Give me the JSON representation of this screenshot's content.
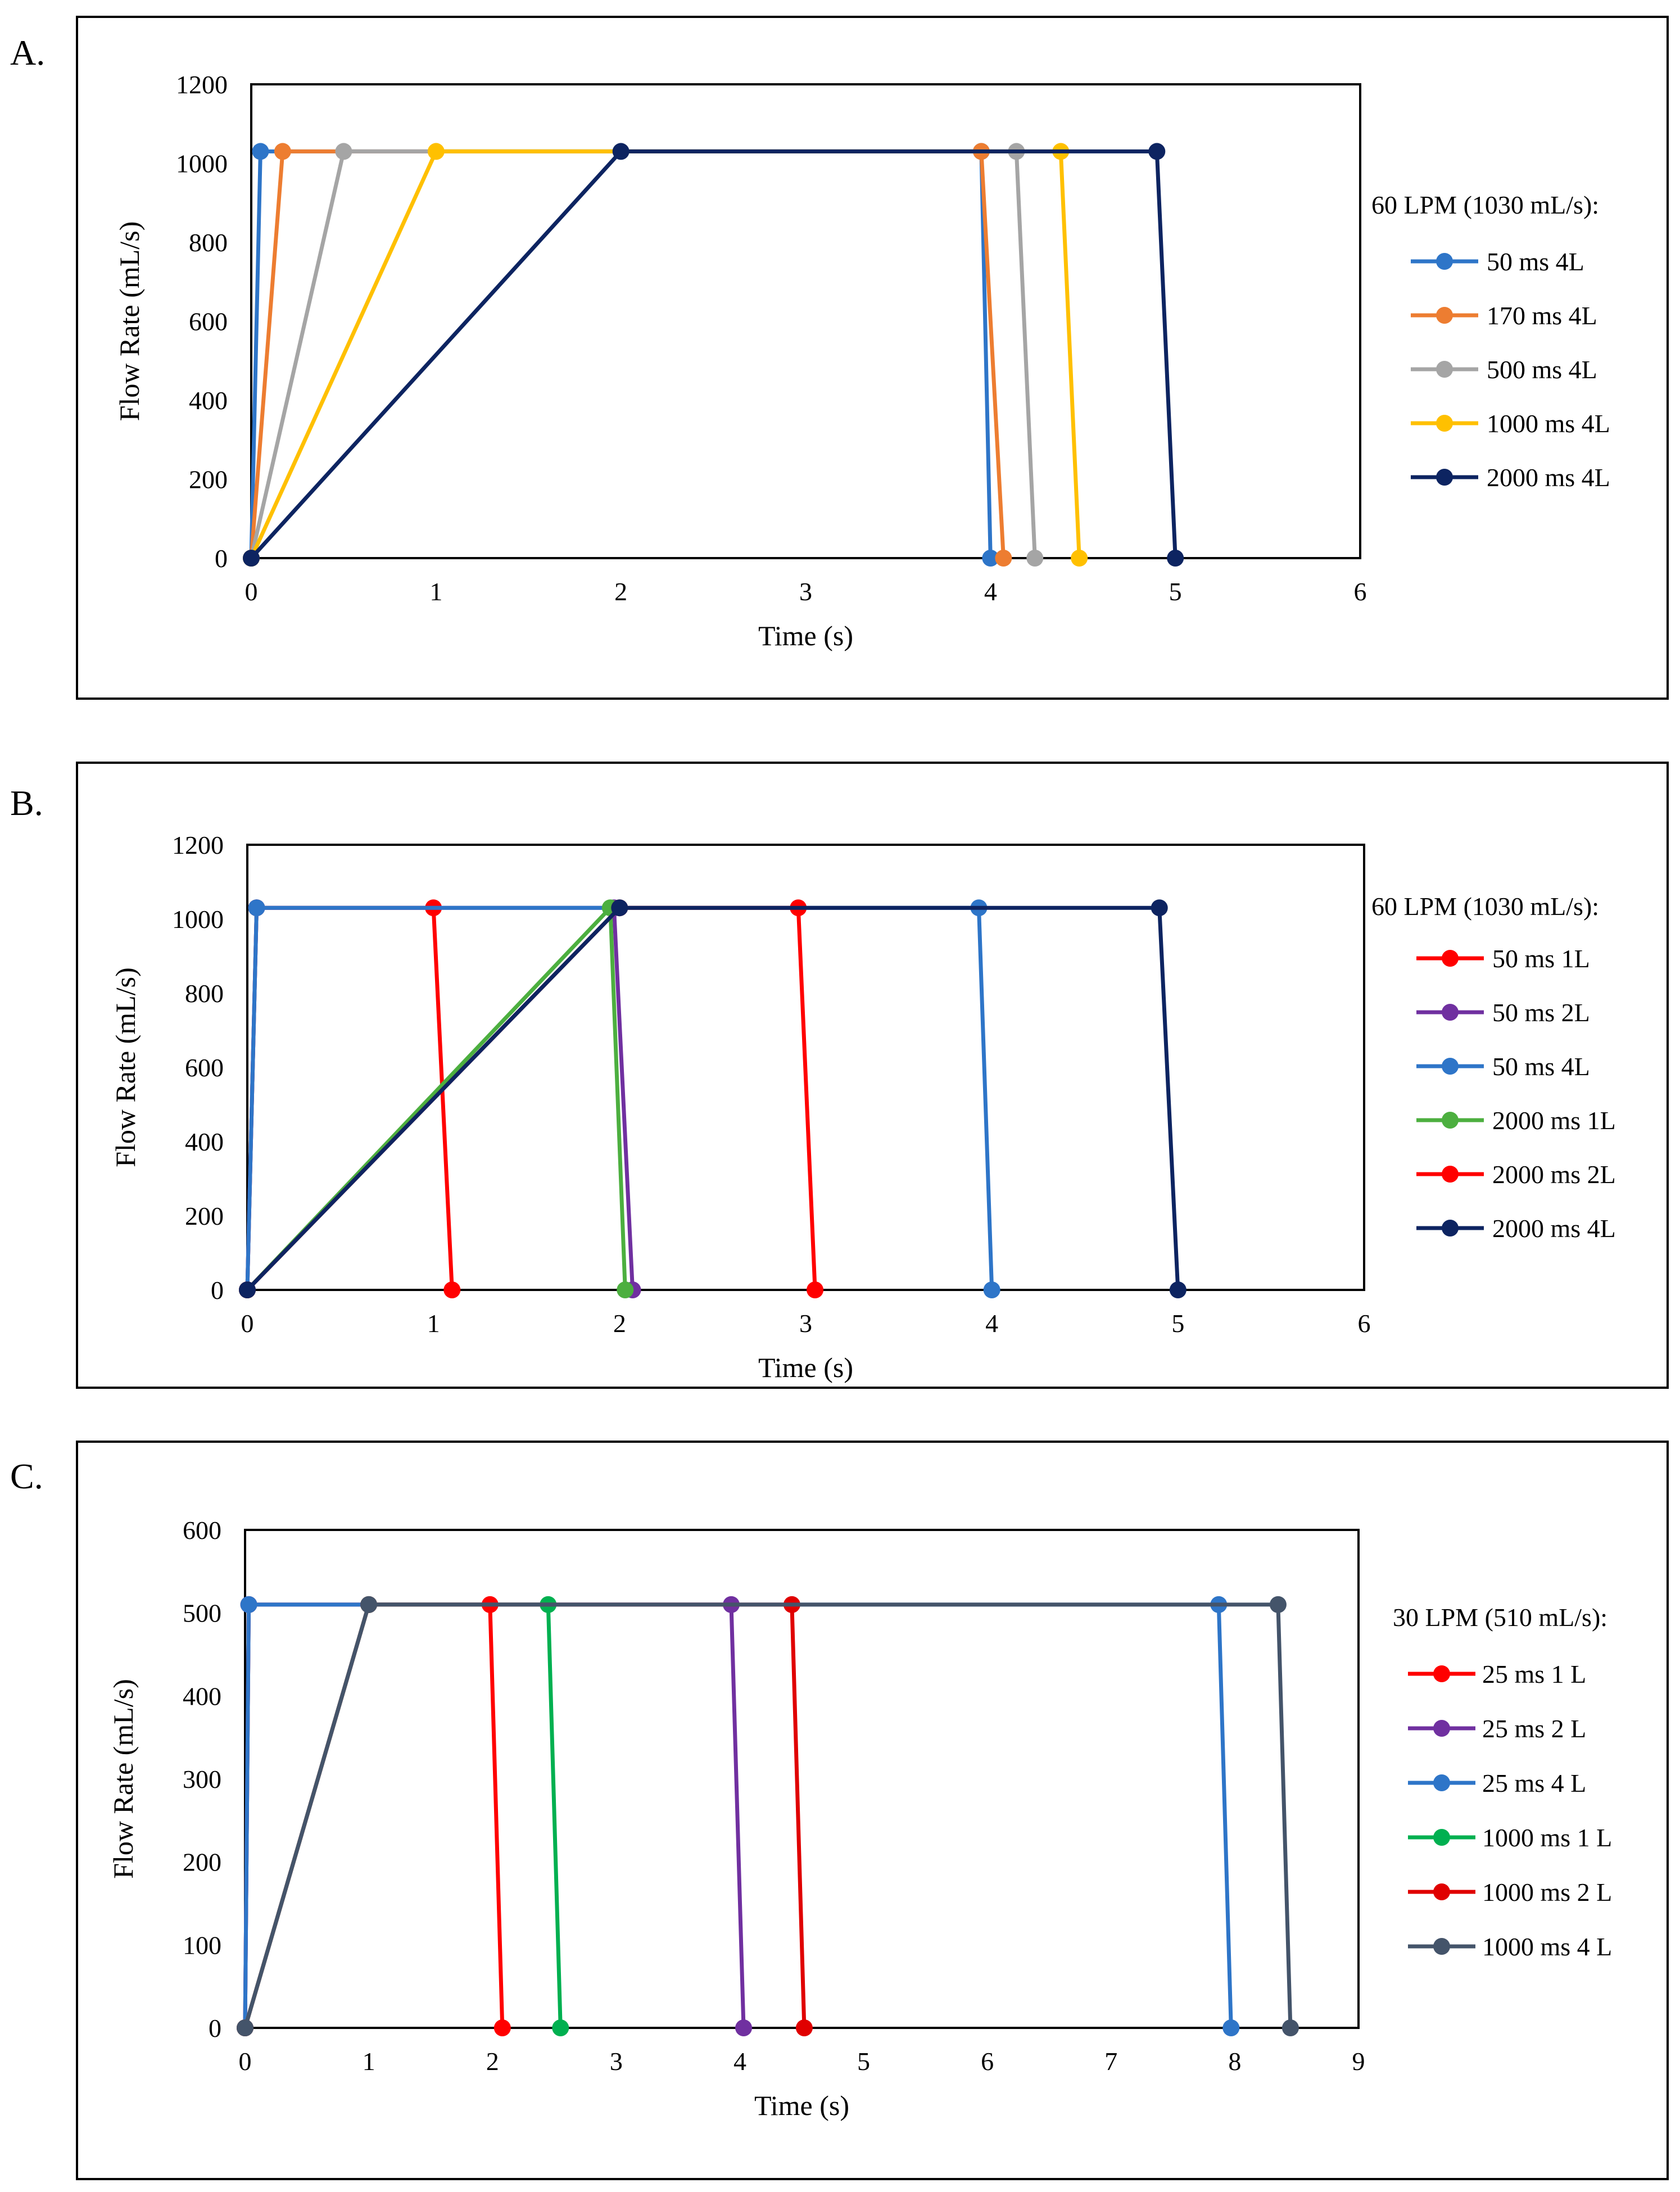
{
  "chart_data": [
    {
      "panel_label": "A.",
      "type": "line",
      "xlabel": "Time (s)",
      "ylabel": "Flow Rate (mL/s)",
      "xlim": [
        0,
        6
      ],
      "ylim": [
        0,
        1200
      ],
      "xticks": [
        0,
        1,
        2,
        3,
        4,
        5,
        6
      ],
      "yticks": [
        0,
        200,
        400,
        600,
        800,
        1000,
        1200
      ],
      "xtick_labels": [
        "0",
        "1",
        "2",
        "3",
        "4",
        "5",
        "6"
      ],
      "ytick_labels": [
        "0",
        "200",
        "400",
        "600",
        "800",
        "1000",
        "1200"
      ],
      "grid": false,
      "legend_title": "60 LPM (1030 mL/s):",
      "legend_position": "right",
      "series": [
        {
          "name": "50 ms 4L",
          "color": "#2E75C8",
          "x": [
            0,
            0.05,
            3.95,
            4.0
          ],
          "y": [
            0,
            1030,
            1030,
            0
          ]
        },
        {
          "name": "170 ms 4L",
          "color": "#ED7D31",
          "x": [
            0,
            0.17,
            3.95,
            4.07
          ],
          "y": [
            0,
            1030,
            1030,
            0
          ]
        },
        {
          "name": "500 ms 4L",
          "color": "#A5A5A5",
          "x": [
            0,
            0.5,
            4.14,
            4.24
          ],
          "y": [
            0,
            1030,
            1030,
            0
          ]
        },
        {
          "name": "1000 ms 4L",
          "color": "#FFC000",
          "x": [
            0,
            1.0,
            4.38,
            4.48
          ],
          "y": [
            0,
            1030,
            1030,
            0
          ]
        },
        {
          "name": "2000 ms 4L",
          "color": "#0D2461",
          "x": [
            0,
            2.0,
            4.9,
            5.0
          ],
          "y": [
            0,
            1030,
            1030,
            0
          ]
        }
      ]
    },
    {
      "panel_label": "B.",
      "type": "line",
      "xlabel": "Time (s)",
      "ylabel": "Flow Rate (mL/s)",
      "xlim": [
        0,
        6
      ],
      "ylim": [
        0,
        1200
      ],
      "xticks": [
        0,
        1,
        2,
        3,
        4,
        5,
        6
      ],
      "yticks": [
        0,
        200,
        400,
        600,
        800,
        1000,
        1200
      ],
      "xtick_labels": [
        "0",
        "1",
        "2",
        "3",
        "4",
        "5",
        "6"
      ],
      "ytick_labels": [
        "0",
        "200",
        "400",
        "600",
        "800",
        "1000",
        "1200"
      ],
      "grid": false,
      "legend_title": "60 LPM (1030 mL/s):",
      "legend_position": "right",
      "series": [
        {
          "name": "50 ms 1L",
          "color": "#FF0000",
          "x": [
            0,
            0.05,
            1.0,
            1.1
          ],
          "y": [
            0,
            1030,
            1030,
            0
          ]
        },
        {
          "name": "50 ms 2L",
          "color": "#7030A0",
          "x": [
            0,
            0.05,
            1.97,
            2.07
          ],
          "y": [
            0,
            1030,
            1030,
            0
          ]
        },
        {
          "name": "50 ms 4L",
          "color": "#2E75C8",
          "x": [
            0,
            0.05,
            3.93,
            4.0
          ],
          "y": [
            0,
            1030,
            1030,
            0
          ]
        },
        {
          "name": "2000 ms 1L",
          "color": "#4CAF3F",
          "x": [
            0,
            1.95,
            2.03
          ],
          "y": [
            0,
            1030,
            0
          ]
        },
        {
          "name": "2000 ms 2L",
          "color": "#FF0000",
          "x": [
            0,
            2.0,
            2.96,
            3.05
          ],
          "y": [
            0,
            1030,
            1030,
            0
          ]
        },
        {
          "name": "2000 ms 4L",
          "color": "#0D2461",
          "x": [
            0,
            2.0,
            4.9,
            5.0
          ],
          "y": [
            0,
            1030,
            1030,
            0
          ]
        }
      ]
    },
    {
      "panel_label": "C.",
      "type": "line",
      "xlabel": "Time (s)",
      "ylabel": "Flow Rate (mL/s)",
      "xlim": [
        0,
        9
      ],
      "ylim": [
        0,
        600
      ],
      "xticks": [
        0,
        1,
        2,
        3,
        4,
        5,
        6,
        7,
        8,
        9
      ],
      "yticks": [
        0,
        100,
        200,
        300,
        400,
        500,
        600
      ],
      "xtick_labels": [
        "0",
        "1",
        "2",
        "3",
        "4",
        "5",
        "6",
        "7",
        "8",
        "9"
      ],
      "ytick_labels": [
        "0",
        "100",
        "200",
        "300",
        "400",
        "500",
        "600"
      ],
      "grid": false,
      "legend_title": "30 LPM (510 mL/s):",
      "legend_position": "right",
      "series": [
        {
          "name": "25 ms 1 L",
          "color": "#FF0000",
          "x": [
            0,
            0.03,
            1.98,
            2.08
          ],
          "y": [
            0,
            510,
            510,
            0
          ]
        },
        {
          "name": "25 ms 2 L",
          "color": "#7030A0",
          "x": [
            0,
            0.03,
            3.93,
            4.03
          ],
          "y": [
            0,
            510,
            510,
            0
          ]
        },
        {
          "name": "25 ms 4 L",
          "color": "#2E75C8",
          "x": [
            0,
            0.03,
            7.87,
            7.97
          ],
          "y": [
            0,
            510,
            510,
            0
          ]
        },
        {
          "name": "1000 ms 1 L",
          "color": "#00B050",
          "x": [
            0,
            1.0,
            2.45,
            2.55
          ],
          "y": [
            0,
            510,
            510,
            0
          ]
        },
        {
          "name": "1000 ms 2 L",
          "color": "#E00000",
          "x": [
            0,
            1.0,
            4.42,
            4.52
          ],
          "y": [
            0,
            510,
            510,
            0
          ]
        },
        {
          "name": "1000 ms 4 L",
          "color": "#44546A",
          "x": [
            0,
            1.0,
            8.35,
            8.45
          ],
          "y": [
            0,
            510,
            510,
            0
          ]
        }
      ]
    }
  ]
}
